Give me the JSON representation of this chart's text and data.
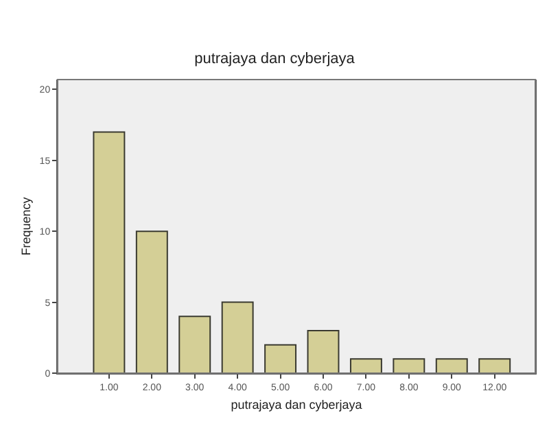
{
  "chart_data": {
    "type": "bar",
    "title": "putrajaya dan cyberjaya",
    "xlabel": "putrajaya dan cyberjaya",
    "ylabel": "Frequency",
    "categories": [
      "1.00",
      "2.00",
      "3.00",
      "4.00",
      "5.00",
      "6.00",
      "7.00",
      "8.00",
      "9.00",
      "12.00"
    ],
    "values": [
      17,
      10,
      4,
      5,
      2,
      3,
      1,
      1,
      1,
      1
    ],
    "color": "#d4cf96",
    "ylim": [
      0,
      20.7
    ],
    "yticks": [
      0,
      5,
      10,
      15,
      20
    ],
    "grid": false
  }
}
